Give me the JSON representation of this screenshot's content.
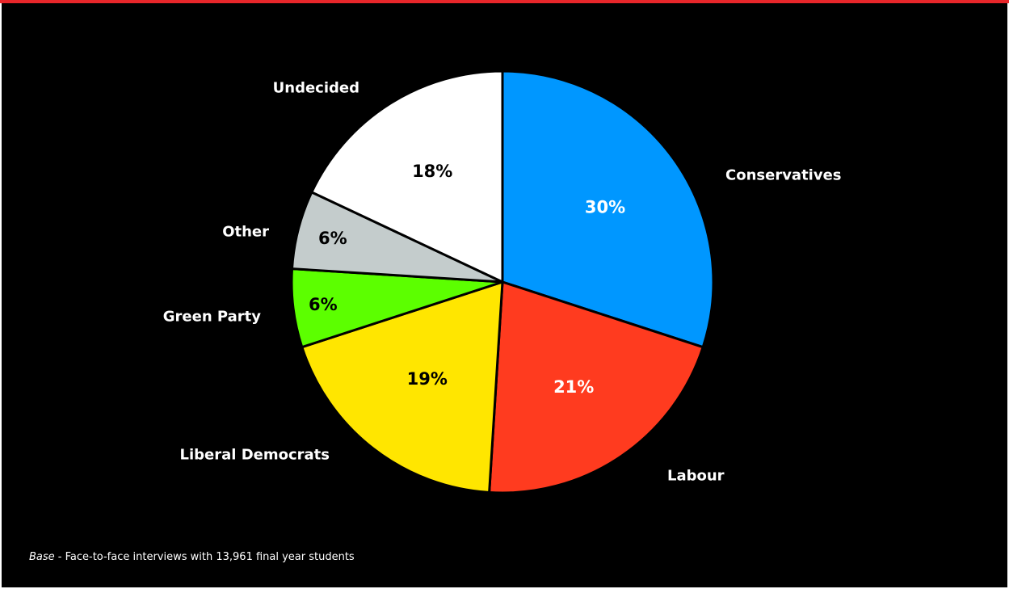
{
  "colors": {
    "accent": "#e8262a",
    "background": "#000000",
    "slice_border": "#000000"
  },
  "chart_data": {
    "type": "pie",
    "title": "",
    "unit": "%",
    "start_angle_deg": 0,
    "direction": "clockwise",
    "slices": [
      {
        "label": "Conservatives",
        "value": 30,
        "display": "30%",
        "color": "#0097ff",
        "text_color": "#ffffff"
      },
      {
        "label": "Labour",
        "value": 21,
        "display": "21%",
        "color": "#ff3b1f",
        "text_color": "#ffffff"
      },
      {
        "label": "Liberal Democrats",
        "value": 19,
        "display": "19%",
        "color": "#ffe600",
        "text_color": "#000000"
      },
      {
        "label": "Green Party",
        "value": 6,
        "display": "6%",
        "color": "#5cff00",
        "text_color": "#000000"
      },
      {
        "label": "Other",
        "value": 6,
        "display": "6%",
        "color": "#c4cccc",
        "text_color": "#000000"
      },
      {
        "label": "Undecided",
        "value": 18,
        "display": "18%",
        "color": "#ffffff",
        "text_color": "#000000"
      }
    ]
  },
  "footnote": {
    "prefix": "Base",
    "text": " - Face-to-face interviews with 13,961 final year students"
  }
}
